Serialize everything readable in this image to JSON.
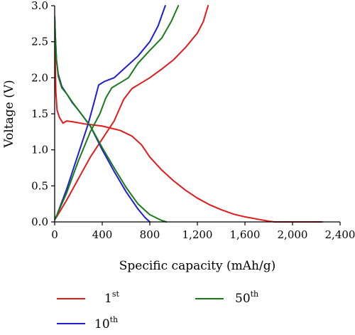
{
  "chart_data": {
    "type": "line",
    "xlabel": "Specific capacity (mAh/g)",
    "ylabel": "Voltage (V)",
    "xlim": [
      0,
      2400
    ],
    "ylim": [
      0,
      3.0
    ],
    "x_ticks": [
      0,
      400,
      800,
      1200,
      1600,
      2000,
      2400
    ],
    "x_tick_labels": [
      "0",
      "400",
      "800",
      "1,200",
      "1,600",
      "2,000",
      "2,400"
    ],
    "y_ticks": [
      0,
      0.5,
      1.0,
      1.5,
      2.0,
      2.5,
      3.0
    ],
    "y_tick_labels": [
      "0.0",
      "0.5",
      "1.0",
      "1.5",
      "2.0",
      "2.5",
      "3.0"
    ],
    "grid": false,
    "legend_position": "bottom",
    "series": [
      {
        "name": "1st",
        "label_base": "1",
        "label_sup": "st",
        "color": "#e31a1c",
        "curves": [
          [
            [
              0,
              2.85
            ],
            [
              5,
              2.2
            ],
            [
              10,
              1.8
            ],
            [
              20,
              1.55
            ],
            [
              40,
              1.45
            ],
            [
              70,
              1.37
            ],
            [
              100,
              1.4
            ],
            [
              150,
              1.39
            ],
            [
              250,
              1.36
            ],
            [
              400,
              1.33
            ],
            [
              550,
              1.27
            ],
            [
              650,
              1.19
            ],
            [
              730,
              1.07
            ],
            [
              800,
              0.9
            ],
            [
              900,
              0.72
            ],
            [
              1000,
              0.57
            ],
            [
              1100,
              0.44
            ],
            [
              1200,
              0.33
            ],
            [
              1300,
              0.24
            ],
            [
              1400,
              0.17
            ],
            [
              1500,
              0.11
            ],
            [
              1600,
              0.07
            ],
            [
              1700,
              0.04
            ],
            [
              1800,
              0.01
            ],
            [
              1850,
              0.0
            ],
            [
              2000,
              0.0
            ],
            [
              2250,
              0.0
            ]
          ],
          [
            [
              0,
              0.03
            ],
            [
              20,
              0.08
            ],
            [
              100,
              0.3
            ],
            [
              200,
              0.6
            ],
            [
              300,
              0.9
            ],
            [
              400,
              1.15
            ],
            [
              500,
              1.4
            ],
            [
              580,
              1.7
            ],
            [
              650,
              1.85
            ],
            [
              720,
              1.92
            ],
            [
              800,
              2.0
            ],
            [
              900,
              2.12
            ],
            [
              1000,
              2.25
            ],
            [
              1100,
              2.42
            ],
            [
              1200,
              2.62
            ],
            [
              1250,
              2.78
            ],
            [
              1290,
              3.0
            ]
          ]
        ]
      },
      {
        "name": "10th",
        "label_base": "10",
        "label_sup": "th",
        "color": "#1f1fd6",
        "curves": [
          [
            [
              0,
              2.85
            ],
            [
              5,
              2.6
            ],
            [
              15,
              2.25
            ],
            [
              30,
              2.05
            ],
            [
              60,
              1.88
            ],
            [
              100,
              1.78
            ],
            [
              150,
              1.65
            ],
            [
              200,
              1.55
            ],
            [
              300,
              1.33
            ],
            [
              400,
              1.0
            ],
            [
              500,
              0.7
            ],
            [
              600,
              0.42
            ],
            [
              700,
              0.18
            ],
            [
              760,
              0.06
            ],
            [
              800,
              0.0
            ]
          ],
          [
            [
              0,
              0.03
            ],
            [
              20,
              0.1
            ],
            [
              100,
              0.45
            ],
            [
              200,
              0.95
            ],
            [
              280,
              1.35
            ],
            [
              330,
              1.65
            ],
            [
              370,
              1.9
            ],
            [
              420,
              1.95
            ],
            [
              500,
              2.0
            ],
            [
              600,
              2.15
            ],
            [
              700,
              2.3
            ],
            [
              800,
              2.5
            ],
            [
              870,
              2.72
            ],
            [
              930,
              3.0
            ]
          ]
        ]
      },
      {
        "name": "50th",
        "label_base": "50",
        "label_sup": "th",
        "color": "#1a7a1a",
        "curves": [
          [
            [
              0,
              2.85
            ],
            [
              5,
              2.6
            ],
            [
              15,
              2.25
            ],
            [
              30,
              2.02
            ],
            [
              60,
              1.86
            ],
            [
              100,
              1.78
            ],
            [
              150,
              1.66
            ],
            [
              200,
              1.55
            ],
            [
              300,
              1.33
            ],
            [
              400,
              1.03
            ],
            [
              500,
              0.75
            ],
            [
              600,
              0.48
            ],
            [
              700,
              0.25
            ],
            [
              800,
              0.1
            ],
            [
              900,
              0.02
            ],
            [
              940,
              0.0
            ]
          ],
          [
            [
              0,
              0.03
            ],
            [
              20,
              0.1
            ],
            [
              100,
              0.4
            ],
            [
              200,
              0.85
            ],
            [
              300,
              1.25
            ],
            [
              380,
              1.5
            ],
            [
              430,
              1.72
            ],
            [
              480,
              1.86
            ],
            [
              550,
              1.93
            ],
            [
              620,
              2.0
            ],
            [
              700,
              2.2
            ],
            [
              800,
              2.38
            ],
            [
              900,
              2.55
            ],
            [
              980,
              2.78
            ],
            [
              1040,
              3.0
            ]
          ]
        ]
      }
    ]
  }
}
